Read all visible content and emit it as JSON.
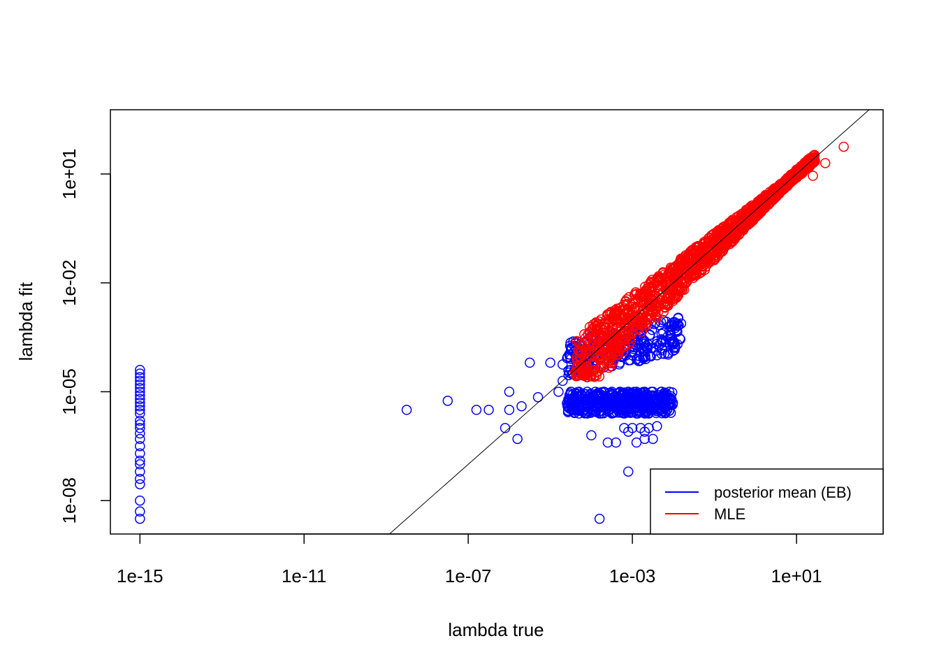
{
  "chart_data": {
    "type": "scatter",
    "title": "",
    "xlabel": "lambda true",
    "ylabel": "lambda fit",
    "x_scale": "log10",
    "y_scale": "log10",
    "x_ticks": [
      {
        "value": 1e-15,
        "label": "1e-15"
      },
      {
        "value": 1e-11,
        "label": "1e-11"
      },
      {
        "value": 1e-07,
        "label": "1e-07"
      },
      {
        "value": 0.001,
        "label": "1e-03"
      },
      {
        "value": 10,
        "label": "1e+01"
      }
    ],
    "y_ticks": [
      {
        "value": 1e-08,
        "label": "1e-08"
      },
      {
        "value": 1e-05,
        "label": "1e-05"
      },
      {
        "value": 0.01,
        "label": "1e-02"
      },
      {
        "value": 10,
        "label": "1e+01"
      }
    ],
    "xlim_log10": [
      -15.72,
      3.11
    ],
    "ylim_log10": [
      -8.92,
      2.77
    ],
    "reference_line": "y = x",
    "grid": false,
    "legend_position": "bottom-right",
    "series": [
      {
        "name": "posterior mean (EB)",
        "color": "#0000ff",
        "marker": "open-circle",
        "points_log10": [
          [
            -15,
            -4.4
          ],
          [
            -15,
            -4.5
          ],
          [
            -15,
            -4.6
          ],
          [
            -15,
            -4.7
          ],
          [
            -15,
            -4.8
          ],
          [
            -15,
            -4.9
          ],
          [
            -15,
            -5.0
          ],
          [
            -15,
            -5.1
          ],
          [
            -15,
            -5.2
          ],
          [
            -15,
            -5.3
          ],
          [
            -15,
            -5.4
          ],
          [
            -15,
            -5.5
          ],
          [
            -15,
            -5.6
          ],
          [
            -15,
            -5.8
          ],
          [
            -15,
            -5.9
          ],
          [
            -15,
            -6.0
          ],
          [
            -15,
            -6.15
          ],
          [
            -15,
            -6.3
          ],
          [
            -15,
            -6.5
          ],
          [
            -15,
            -6.7
          ],
          [
            -15,
            -6.9
          ],
          [
            -15,
            -7.0
          ],
          [
            -15,
            -7.2
          ],
          [
            -15,
            -7.4
          ],
          [
            -15,
            -7.55
          ],
          [
            -15,
            -8.0
          ],
          [
            -15,
            -8.3
          ],
          [
            -15,
            -8.5
          ],
          [
            -6.5,
            -5.5
          ],
          [
            -5.7,
            -5.4
          ],
          [
            -5.5,
            -4.2
          ],
          [
            -5.0,
            -4.2
          ],
          [
            -4.7,
            -4.25
          ],
          [
            -7.5,
            -5.25
          ],
          [
            -8.5,
            -5.5
          ],
          [
            -6.8,
            -5.5
          ],
          [
            -6.0,
            -5.5
          ],
          [
            -6.0,
            -5.0
          ],
          [
            -5.3,
            -5.15
          ],
          [
            -4.8,
            -5.0
          ],
          [
            -4.5,
            -5.3
          ],
          [
            -6.1,
            -6.0
          ],
          [
            -5.8,
            -6.3
          ],
          [
            -4.7,
            -4.7
          ],
          [
            -4.3,
            -4.0
          ],
          [
            -4.0,
            -3.8
          ],
          [
            -3.9,
            -4.3
          ],
          [
            -3.4,
            -3.6
          ],
          [
            -2.8,
            -3.2
          ],
          [
            -4.5,
            -4.4
          ],
          [
            -4.1,
            -4.6
          ],
          [
            -3.5,
            -4.3
          ],
          [
            -4.5,
            -5.0
          ],
          [
            -4.3,
            -5.0
          ],
          [
            -4.1,
            -5.0
          ],
          [
            -3.9,
            -5.0
          ],
          [
            -3.7,
            -5.0
          ],
          [
            -3.5,
            -5.0
          ],
          [
            -3.3,
            -5.0
          ],
          [
            -3.1,
            -5.0
          ],
          [
            -2.9,
            -5.0
          ],
          [
            -2.7,
            -5.0
          ],
          [
            -2.5,
            -5.0
          ],
          [
            -2.3,
            -5.0
          ],
          [
            -2.1,
            -5.0
          ],
          [
            -4.4,
            -5.2
          ],
          [
            -4.2,
            -5.2
          ],
          [
            -4.0,
            -5.2
          ],
          [
            -3.8,
            -5.2
          ],
          [
            -3.6,
            -5.2
          ],
          [
            -3.4,
            -5.2
          ],
          [
            -3.2,
            -5.2
          ],
          [
            -3.0,
            -5.2
          ],
          [
            -2.8,
            -5.2
          ],
          [
            -2.6,
            -5.2
          ],
          [
            -2.4,
            -5.2
          ],
          [
            -4.5,
            -5.4
          ],
          [
            -4.3,
            -5.4
          ],
          [
            -4.1,
            -5.4
          ],
          [
            -3.9,
            -5.4
          ],
          [
            -3.7,
            -5.4
          ],
          [
            -3.5,
            -5.4
          ],
          [
            -3.3,
            -5.4
          ],
          [
            -3.1,
            -5.4
          ],
          [
            -2.9,
            -5.4
          ],
          [
            -2.7,
            -5.4
          ],
          [
            -2.5,
            -5.4
          ],
          [
            -4.3,
            -5.6
          ],
          [
            -4.1,
            -5.6
          ],
          [
            -3.8,
            -5.6
          ],
          [
            -3.5,
            -5.6
          ],
          [
            -3.2,
            -5.6
          ],
          [
            -2.9,
            -5.6
          ],
          [
            -2.6,
            -5.6
          ],
          [
            -3.2,
            -6.0
          ],
          [
            -3.0,
            -6.0
          ],
          [
            -2.8,
            -6.0
          ],
          [
            -2.6,
            -6.0
          ],
          [
            -2.4,
            -5.95
          ],
          [
            -3.1,
            -6.1
          ],
          [
            -2.7,
            -6.1
          ],
          [
            -4.0,
            -6.2
          ],
          [
            -3.6,
            -6.4
          ],
          [
            -3.4,
            -6.4
          ],
          [
            -2.9,
            -6.4
          ],
          [
            -2.7,
            -6.3
          ],
          [
            -2.5,
            -6.3
          ],
          [
            -3.1,
            -7.2
          ],
          [
            -3.8,
            -8.5
          ]
        ]
      },
      {
        "name": "MLE",
        "color": "#ff0000",
        "marker": "open-circle",
        "points_log10": [
          [
            1.7,
            1.3
          ],
          [
            2.15,
            1.75
          ],
          [
            1.4,
            0.95
          ]
        ]
      }
    ]
  }
}
